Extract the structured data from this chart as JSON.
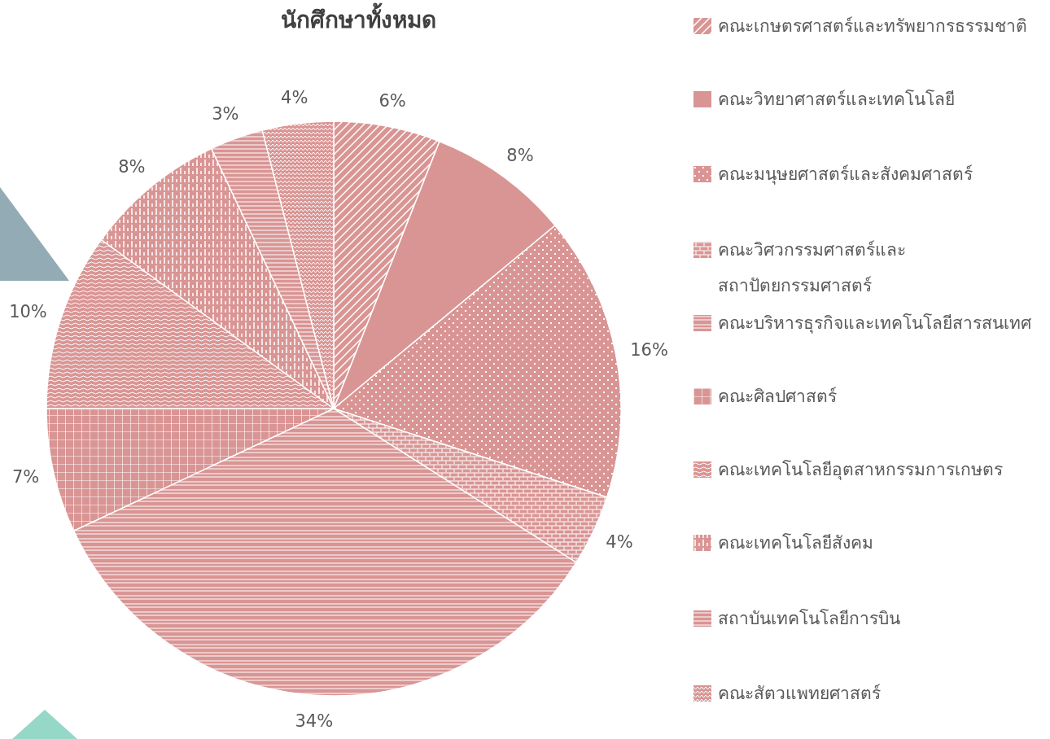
{
  "chart_data": {
    "type": "pie",
    "title": "นักศึกษาทั้งหมด",
    "categories": [
      "คณะเกษตรศาสตร์และทรัพยากรธรรมชาติ",
      "คณะวิทยาศาสตร์และเทคโนโลยี",
      "คณะมนุษยศาสตร์และสังคมศาสตร์",
      "คณะวิศวกรรมศาสตร์และสถาปัตยกรรมศาสตร์",
      "คณะบริหารธุรกิจและเทคโนโลยีสารสนเทศ",
      "คณะศิลปศาสตร์",
      "คณะเทคโนโลยีอุตสาหกรรมการเกษตร",
      "คณะเทคโนโลยีสังคม",
      "สถาบันเทคโนโลยีการบิน",
      "คณะสัตวแพทยศาสตร์"
    ],
    "values": [
      6,
      8,
      16,
      4,
      34,
      7,
      10,
      8,
      3,
      4
    ],
    "value_labels": [
      "6%",
      "8%",
      "16%",
      "4%",
      "34%",
      "7%",
      "10%",
      "8%",
      "3%",
      "4%"
    ],
    "colors": [
      "#d99594",
      "#d99594",
      "#d99594",
      "#d99594",
      "#d99594",
      "#d99594",
      "#d99594",
      "#d99594",
      "#d99594",
      "#d99594"
    ],
    "legend": "right"
  }
}
